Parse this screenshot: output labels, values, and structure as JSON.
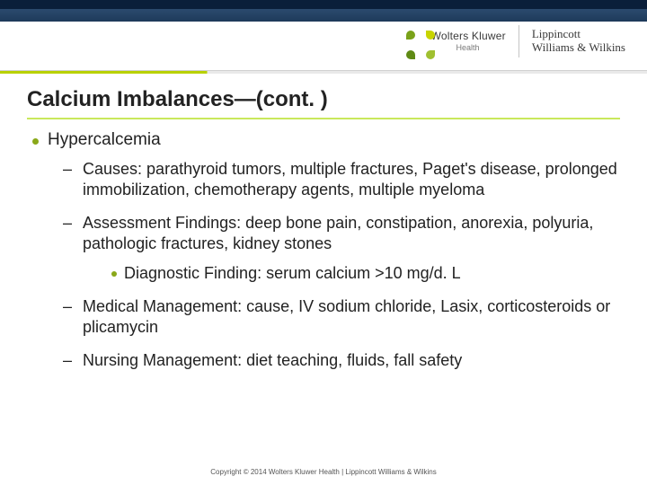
{
  "brand": {
    "wk_main": "Wolters Kluwer",
    "wk_sub": "Health",
    "lww_line1": "Lippincott",
    "lww_line2": "Williams & Wilkins",
    "petal_colors": [
      "#7aa21a",
      "#c8d400",
      "#5f8a14",
      "#a0c030"
    ]
  },
  "title": "Calcium Imbalances—(cont. )",
  "level1": {
    "text": "Hypercalcemia"
  },
  "items": [
    {
      "text": "Causes: parathyroid tumors, multiple fractures, Paget's disease, prolonged immobilization, chemotherapy agents, multiple myeloma"
    },
    {
      "text": "Assessment Findings: deep bone pain, constipation, anorexia, polyuria, pathologic fractures, kidney stones"
    }
  ],
  "subitem": {
    "text": "Diagnostic Finding: serum calcium >10 mg/d. L"
  },
  "items2": [
    {
      "text": "Medical Management: cause, IV sodium chloride, Lasix, corticosteroids or plicamycin"
    },
    {
      "text": "Nursing Management: diet teaching, fluids, fall safety"
    }
  ],
  "footer": "Copyright © 2014 Wolters Kluwer Health | Lippincott Williams & Wilkins",
  "colors": {
    "accent_green": "#b8d100",
    "bullet_green": "#8aa819",
    "top_band": "#0a1f3a",
    "mid_band": "#1e3a5a"
  }
}
